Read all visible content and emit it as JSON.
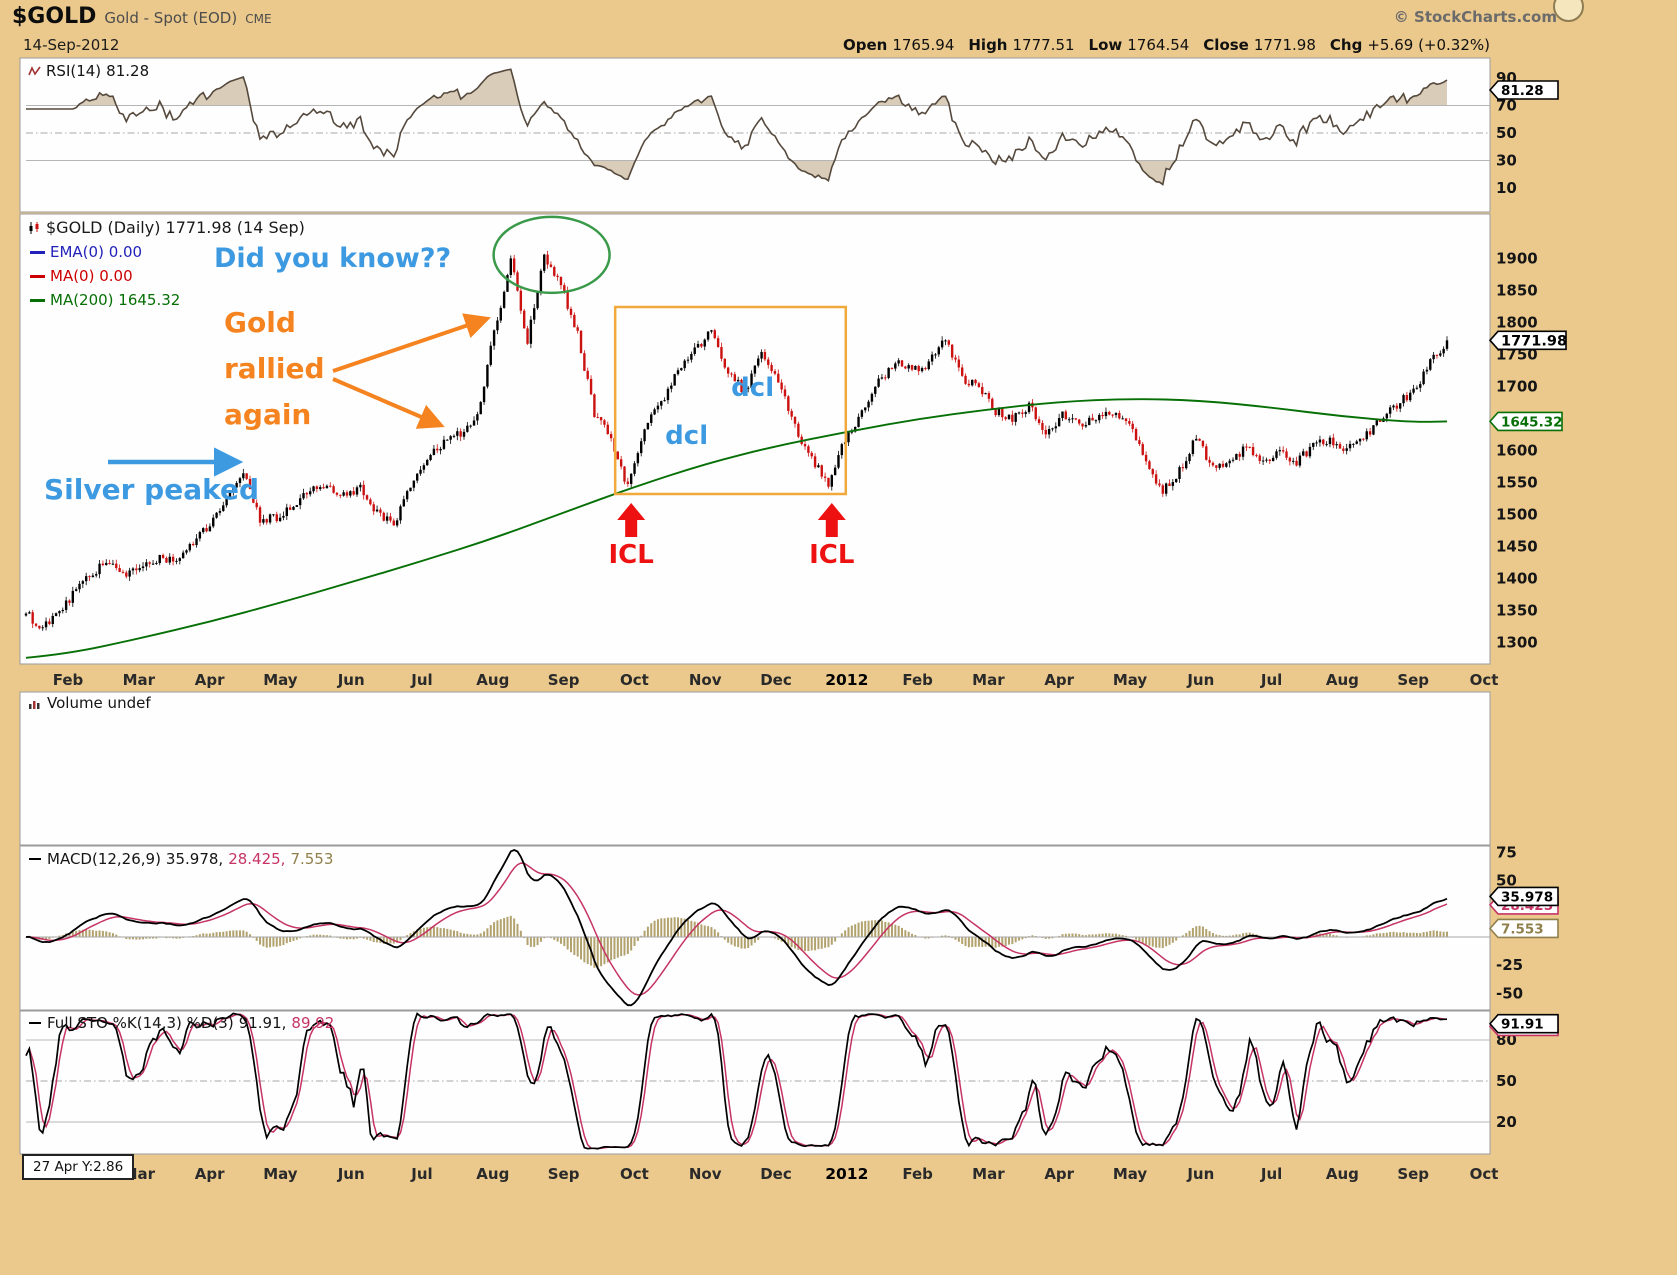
{
  "header": {
    "symbol": "$GOLD",
    "description": "Gold - Spot (EOD)",
    "exchange": "CME",
    "copyright": "© StockCharts.com",
    "date": "14-Sep-2012",
    "quote": [
      {
        "label": "Open",
        "value": "1765.94"
      },
      {
        "label": "High",
        "value": "1777.51"
      },
      {
        "label": "Low",
        "value": "1764.54"
      },
      {
        "label": "Close",
        "value": "1771.98"
      },
      {
        "label": "Chg",
        "value": "+5.69 (+0.32%)"
      }
    ]
  },
  "rsi_panel": {
    "name": "RSI(14)",
    "value": "81.28"
  },
  "price_panel": {
    "title": "$GOLD (Daily) 1771.98 (14 Sep)",
    "legend": [
      {
        "text": "EMA(0) 0.00",
        "color": "#2222bb"
      },
      {
        "text": "MA(0) 0.00",
        "color": "#cc0000"
      },
      {
        "text": "MA(200) 1645.32",
        "color": "#067006"
      }
    ]
  },
  "volume_panel": {
    "label": "Volume undef"
  },
  "macd_panel": {
    "name": "MACD(12,26,9)",
    "v1": "35.978,",
    "v2": "28.425,",
    "v3": "7.553"
  },
  "sto_panel": {
    "name": "Full STO %K(14,3) %D(3)",
    "v1": "91.91,",
    "v2": "89.92"
  },
  "annotations": {
    "did_you_know": "Did you know??",
    "gold_rallied_lines": [
      "Gold",
      "rallied",
      "again"
    ],
    "silver_peaked": "Silver peaked",
    "dcl_upper": "dcl",
    "dcl_lower": "dcl",
    "icl_left": "ICL",
    "icl_right": "ICL",
    "readout": "27 Apr Y:2.86"
  },
  "colors": {
    "background": "#ebc98c",
    "panel": "#fefefe",
    "panel_border": "#9b9b9b",
    "candle_up": "#000000",
    "candle_down": "#cc1111",
    "ma200": "#067006",
    "rsi_line": "#55493d",
    "rsi_fill": "#b49a72",
    "macd_line": "#000000",
    "macd_signal": "#c63464",
    "macd_hist": "#b2a26e",
    "sto_k": "#000000",
    "sto_d": "#c63464",
    "annotation_blue": "#3d9ae1",
    "annotation_orange": "#f5831f",
    "annotation_box_orange": "#f2a93b",
    "annotation_red": "#ee1111",
    "annotation_green": "#3a9a4a"
  },
  "chart_data": {
    "type": "candlestick",
    "title": "$GOLD Gold - Spot (EOD) CME, Daily, 14-Sep-2012",
    "x_axis_months": [
      "Feb",
      "Mar",
      "Apr",
      "May",
      "Jun",
      "Jul",
      "Aug",
      "Sep",
      "Oct",
      "Nov",
      "Dec",
      "2012",
      "Feb",
      "Mar",
      "Apr",
      "May",
      "Jun",
      "Jul",
      "Aug",
      "Sep",
      "Oct"
    ],
    "price": {
      "ylim": [
        1285,
        1935
      ],
      "yticks": [
        1900,
        1850,
        1800,
        1750,
        1700,
        1650,
        1600,
        1550,
        1500,
        1450,
        1400,
        1350,
        1300
      ],
      "weekly_close": [
        1345,
        1322,
        1352,
        1380,
        1410,
        1428,
        1404,
        1418,
        1432,
        1430,
        1458,
        1486,
        1520,
        1563,
        1492,
        1496,
        1512,
        1536,
        1542,
        1528,
        1540,
        1502,
        1486,
        1544,
        1590,
        1612,
        1628,
        1656,
        1782,
        1898,
        1772,
        1900,
        1858,
        1780,
        1656,
        1620,
        1542,
        1638,
        1672,
        1724,
        1756,
        1788,
        1722,
        1692,
        1748,
        1706,
        1636,
        1586,
        1546,
        1618,
        1660,
        1706,
        1738,
        1724,
        1736,
        1776,
        1712,
        1700,
        1662,
        1648,
        1668,
        1630,
        1654,
        1642,
        1652,
        1662,
        1640,
        1580,
        1536,
        1568,
        1622,
        1572,
        1584,
        1604,
        1584,
        1598,
        1582,
        1606,
        1618,
        1602,
        1620,
        1648,
        1672,
        1692,
        1736,
        1771.98
      ],
      "last_close": 1771.98,
      "ma200": {
        "start": 1276,
        "monthly": [
          1282,
          1306,
          1332,
          1362,
          1394,
          1427,
          1462,
          1503,
          1543,
          1579,
          1607,
          1629,
          1649,
          1664,
          1676,
          1681,
          1678,
          1667,
          1653,
          1644
        ],
        "last": 1645.32
      }
    },
    "rsi": {
      "period": 14,
      "last": 81.28,
      "yticks": [
        90,
        70,
        50,
        30,
        10
      ],
      "bands": {
        "upper": 70,
        "mid": 50,
        "lower": 30
      }
    },
    "volume": {
      "value": "undef"
    },
    "macd": {
      "fast": 12,
      "slow": 26,
      "signal": 9,
      "last": [
        35.978,
        28.425,
        7.553
      ],
      "yticks": [
        75,
        50,
        25,
        -25,
        -50
      ],
      "ylim": [
        -70,
        80
      ]
    },
    "sto": {
      "k": 14,
      "k_smooth": 3,
      "d": 3,
      "last": [
        91.91,
        89.92
      ],
      "yticks": [
        80,
        50,
        20
      ],
      "bands": {
        "upper": 80,
        "mid": 50,
        "lower": 20
      }
    },
    "callouts": {
      "rsi": "81.28",
      "price": "1771.98",
      "ma200": "1645.32",
      "macd": [
        "35.978",
        "28.425",
        "7.553"
      ],
      "sto": [
        "91.91",
        "89.92"
      ]
    }
  }
}
